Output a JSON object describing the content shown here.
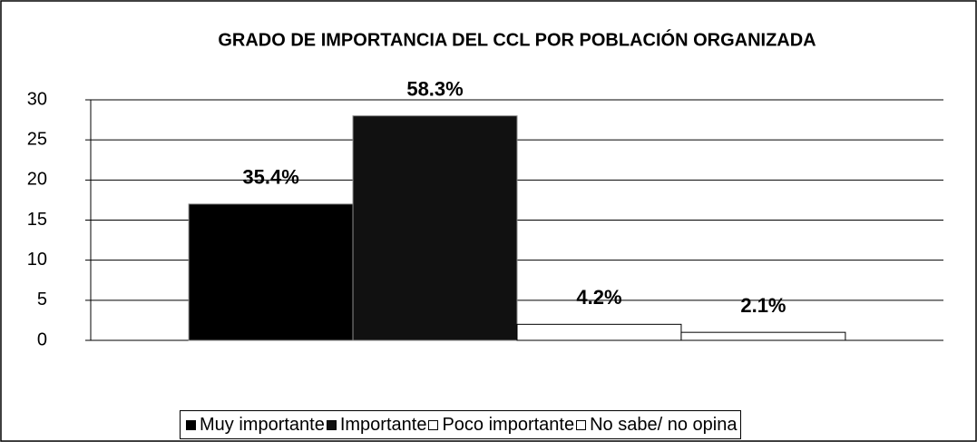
{
  "chart_data": {
    "type": "bar",
    "title": "GRADO DE IMPORTANCIA DEL CCL POR POBLACIÓN ORGANIZADA",
    "categories": [
      null
    ],
    "series": [
      {
        "name": "Muy importante",
        "color": "#000000",
        "values": [
          17
        ]
      },
      {
        "name": "Importante",
        "color": "#111111",
        "values": [
          28
        ]
      },
      {
        "name": "Poco importante",
        "color": "#ffffff",
        "values": [
          2
        ]
      },
      {
        "name": "No sabe/ no opina",
        "color": "#ffffff",
        "values": [
          1
        ]
      }
    ],
    "annotations": [
      "35.4%",
      "58.3%",
      "4.2%",
      "2.1%"
    ],
    "ylim": [
      0,
      30
    ],
    "yticks": [
      0,
      5,
      10,
      15,
      20,
      25,
      30
    ],
    "grid": true,
    "legend": "bottom"
  }
}
